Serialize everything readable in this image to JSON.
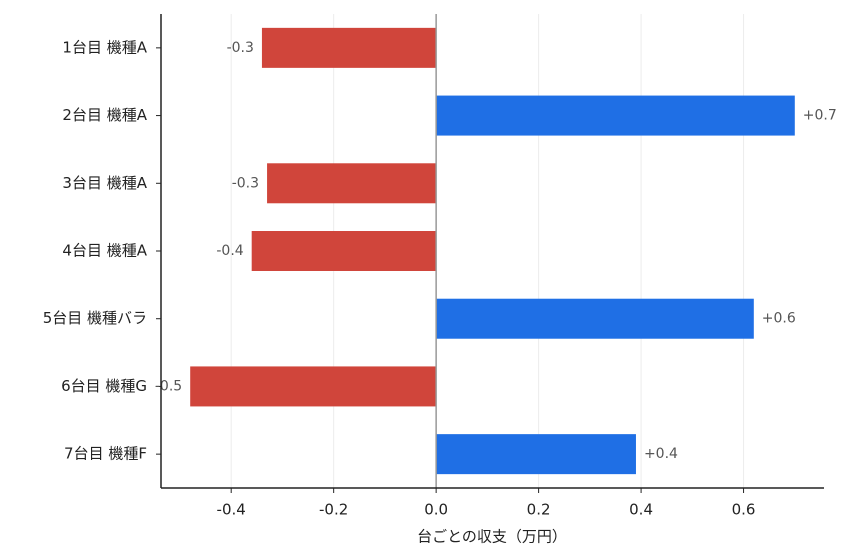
{
  "chart_data": {
    "type": "hbar",
    "categories": [
      "1台目 機種A",
      "2台目 機種A",
      "3台目 機種A",
      "4台目 機種A",
      "5台目 機種バラ",
      "6台目 機種G",
      "7台目 機種F"
    ],
    "values": [
      -0.34,
      0.7,
      -0.33,
      -0.36,
      0.62,
      -0.48,
      0.39
    ],
    "value_labels": [
      "-0.3",
      "+0.7",
      "-0.3",
      "-0.4",
      "+0.6",
      "-0.5",
      "+0.4"
    ],
    "colors": [
      "#d0453b",
      "#1f6fe5",
      "#d0453b",
      "#d0453b",
      "#1f6fe5",
      "#d0453b",
      "#1f6fe5"
    ],
    "xlabel": "台ごとの収支（万円）",
    "xlim": [
      -0.537,
      0.757
    ],
    "xticks": [
      -0.4,
      -0.2,
      {
        "value": 0,
        "label": "0.0"
      },
      0.2,
      0.4,
      0.6
    ],
    "grid": true
  }
}
